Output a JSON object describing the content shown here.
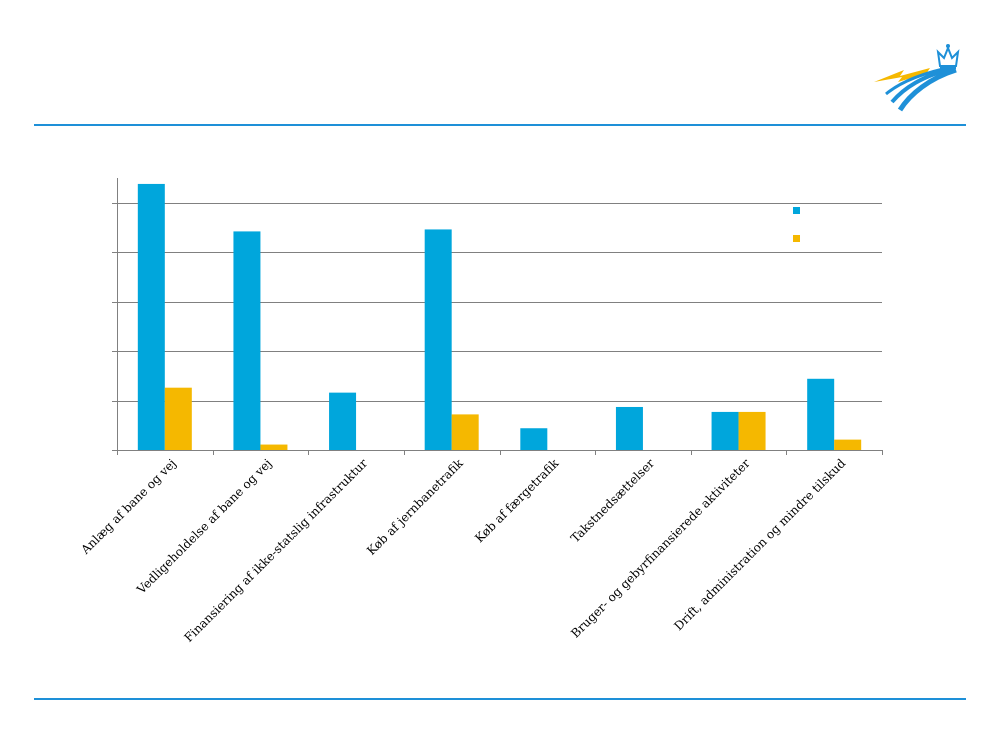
{
  "colors": {
    "accent_rule": "#1E90D8",
    "series_1": "#00A6DC",
    "series_2": "#F5B800",
    "gridline": "#808080",
    "axis": "#808080",
    "logo_blue": "#1E90D8",
    "logo_yellow": "#F5B800"
  },
  "logo": {
    "icon": "crown-road-logo-icon"
  },
  "chart_data": {
    "type": "bar",
    "categories": [
      "Anlæg af bane og vej",
      "Vedligeholdelse af bane og vej",
      "Finansiering af ikke-statslig infrastruktur",
      "Køb af jernbanetrafik",
      "Køb af færgetrafik",
      "Takstnedsættelser",
      "Bruger- og gebyrfinansierede aktiviteter",
      "Drift, administration og mindre tilskud"
    ],
    "series": [
      {
        "values": [
          5.38,
          4.42,
          1.16,
          4.46,
          0.44,
          0.87,
          0.77,
          1.44
        ]
      },
      {
        "values": [
          1.26,
          0.11,
          0,
          0.72,
          0,
          0,
          0.77,
          0.21
        ]
      }
    ],
    "ylim": [
      0,
      5.5
    ],
    "yticks": [
      0,
      1,
      2,
      3,
      4,
      5
    ],
    "grid": true,
    "legend": "top-right",
    "title": "",
    "xlabel": "",
    "ylabel": ""
  }
}
